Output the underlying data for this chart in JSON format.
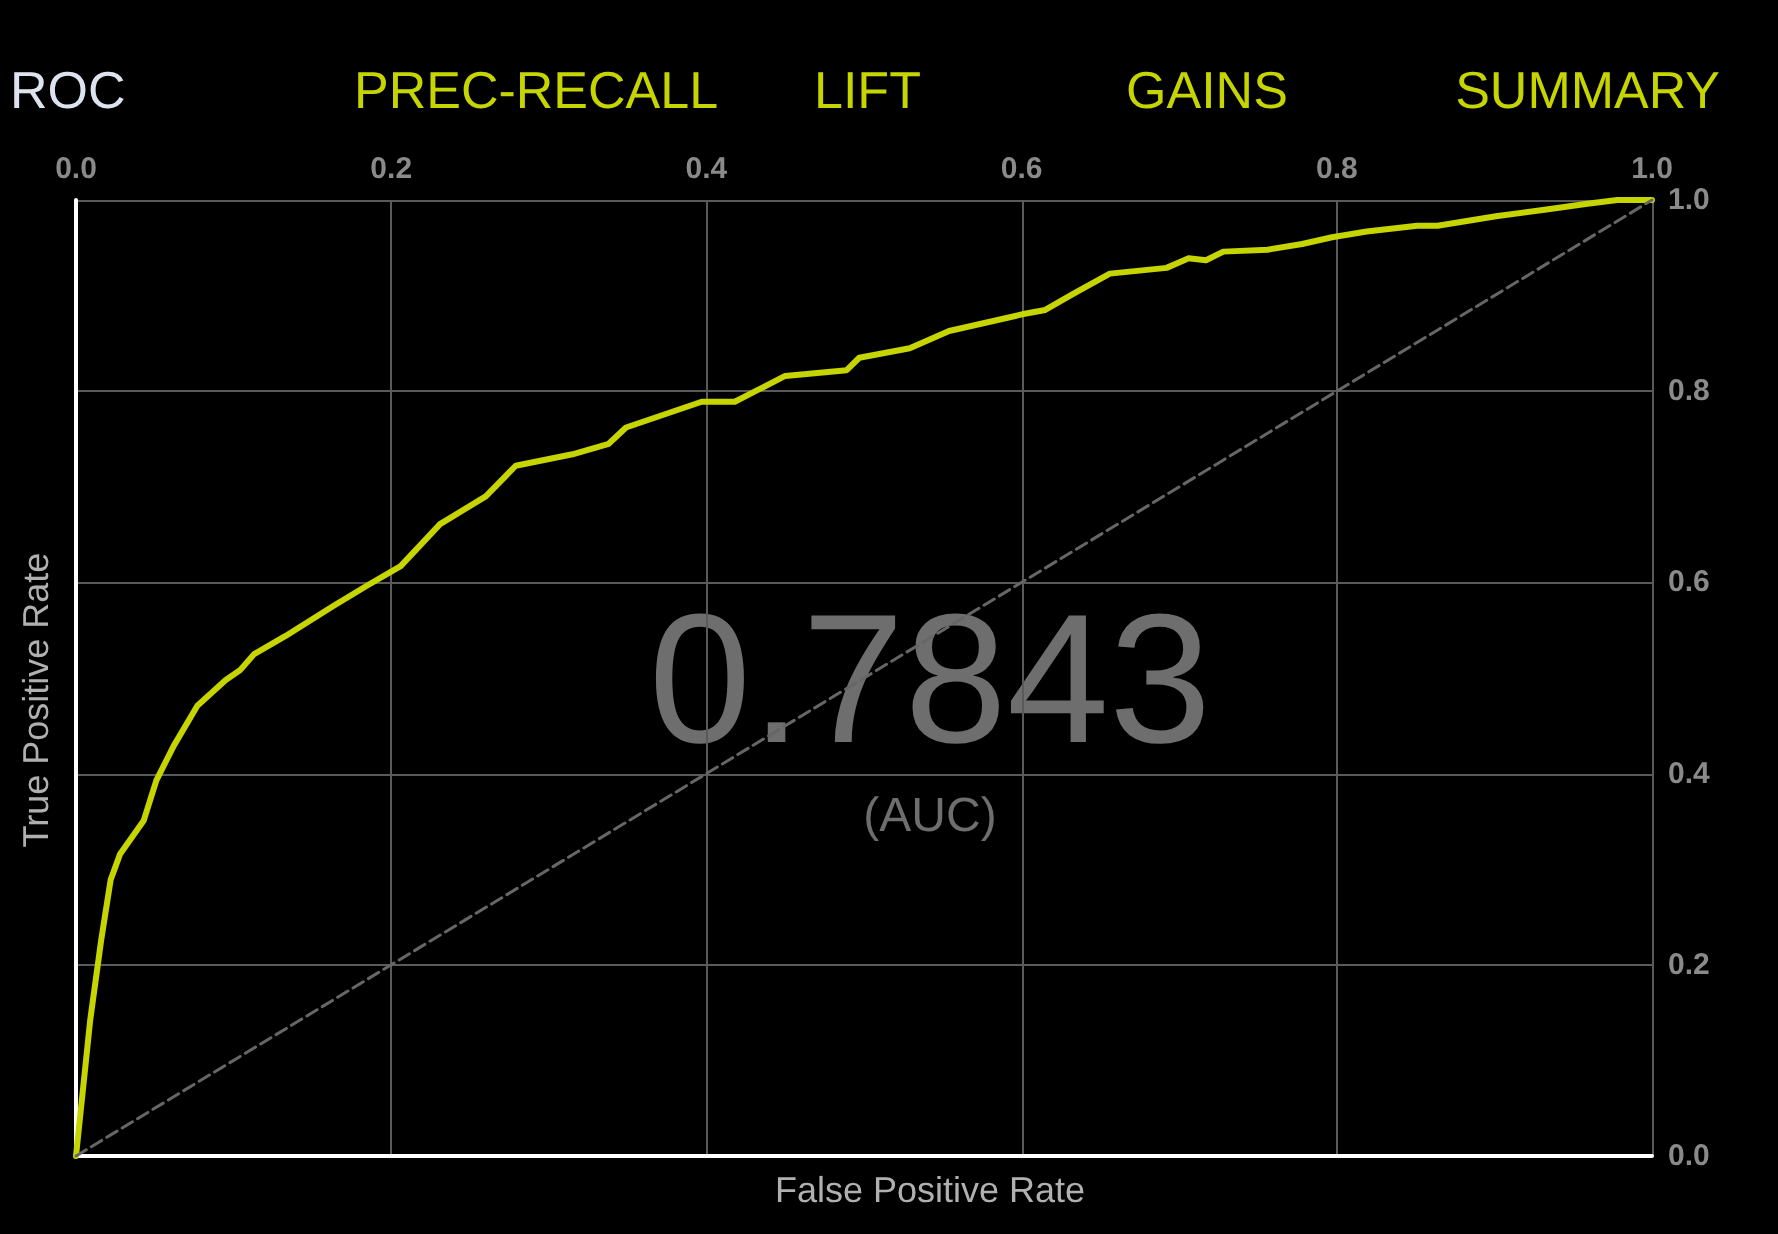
{
  "chart_data": {
    "type": "line",
    "xlabel": "False Positive Rate",
    "ylabel": "True Positive Rate",
    "annotations": [
      "ROC",
      "PREC-RECALL",
      "LIFT",
      "GAINS",
      "SUMMARY",
      "0.7843",
      "(AUC)"
    ],
    "xlim": [
      0,
      1
    ],
    "ylim": [
      0,
      1
    ],
    "xticks": [
      {
        "value": 0,
        "label": "0.0"
      },
      {
        "value": 0.2,
        "label": "0.2"
      },
      {
        "value": 0.4,
        "label": "0.4"
      },
      {
        "value": 0.6,
        "label": "0.6"
      },
      {
        "value": 0.8,
        "label": "0.8"
      },
      {
        "value": 1,
        "label": "1.0"
      }
    ],
    "yticks": [
      {
        "value": 0,
        "label": "0.0"
      },
      {
        "value": 0.2,
        "label": "0.2"
      },
      {
        "value": 0.4,
        "label": "0.4"
      },
      {
        "value": 0.6,
        "label": "0.6"
      },
      {
        "value": 0.8,
        "label": "0.8"
      },
      {
        "value": 1,
        "label": "1.0"
      }
    ],
    "grid": true,
    "marker": "none",
    "series": [
      {
        "color": "#c6d400",
        "line_style": "solid",
        "x": [
          0,
          0.009,
          0.016,
          0.022,
          0.028,
          0.043,
          0.051,
          0.062,
          0.077,
          0.095,
          0.104,
          0.113,
          0.133,
          0.163,
          0.184,
          0.206,
          0.231,
          0.26,
          0.279,
          0.315,
          0.338,
          0.349,
          0.397,
          0.418,
          0.45,
          0.489,
          0.497,
          0.529,
          0.554,
          0.602,
          0.615,
          0.633,
          0.656,
          0.692,
          0.706,
          0.717,
          0.728,
          0.756,
          0.778,
          0.797,
          0.819,
          0.851,
          0.864,
          0.901,
          0.933,
          0.959,
          0.978,
          1
        ],
        "values": [
          0,
          0.142,
          0.226,
          0.289,
          0.316,
          0.351,
          0.393,
          0.429,
          0.471,
          0.498,
          0.508,
          0.525,
          0.544,
          0.575,
          0.596,
          0.617,
          0.661,
          0.69,
          0.722,
          0.734,
          0.745,
          0.762,
          0.789,
          0.789,
          0.816,
          0.822,
          0.835,
          0.845,
          0.863,
          0.881,
          0.885,
          0.902,
          0.923,
          0.929,
          0.939,
          0.937,
          0.946,
          0.948,
          0.954,
          0.961,
          0.967,
          0.973,
          0.973,
          0.983,
          0.99,
          0.996,
          1,
          1
        ]
      },
      {
        "color": "#666666",
        "line_style": "dashed",
        "x": [
          0,
          1
        ],
        "values": [
          0,
          1
        ]
      }
    ]
  }
}
